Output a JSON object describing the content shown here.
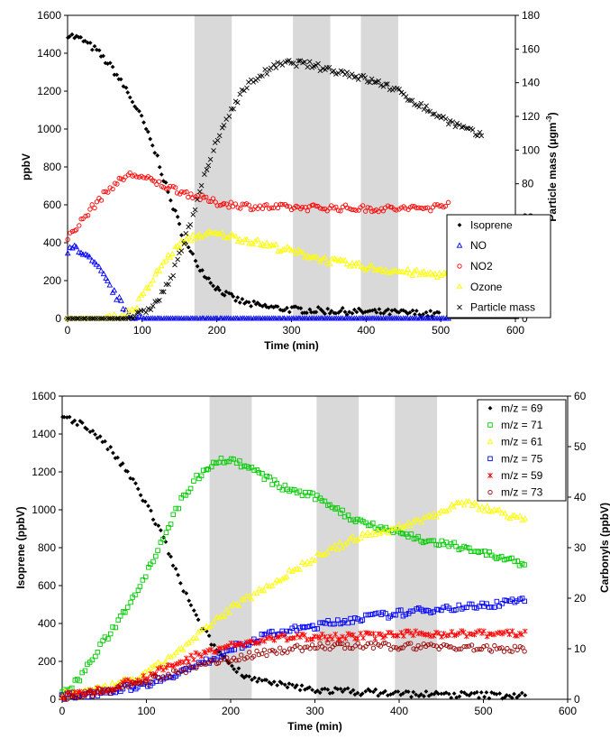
{
  "chart_data": [
    {
      "type": "scatter",
      "xlabel": "Time (min)",
      "ylabel": "ppbV",
      "y2label_main": "Particle mass (μgm",
      "y2label_sup": "-3",
      "y2label_end": ")",
      "xlim": [
        0,
        600
      ],
      "ylim": [
        0,
        1600
      ],
      "y2lim": [
        0,
        180
      ],
      "xticks": [
        "0",
        "100",
        "200",
        "300",
        "400",
        "500",
        "600"
      ],
      "yticks": [
        "0",
        "200",
        "400",
        "600",
        "800",
        "1000",
        "1200",
        "1400",
        "1600"
      ],
      "y2ticks": [
        "0",
        "20",
        "40",
        "60",
        "80",
        "100",
        "120",
        "140",
        "160",
        "180"
      ],
      "shaded_regions": [
        [
          170,
          220
        ],
        [
          302,
          352
        ],
        [
          393,
          443
        ]
      ],
      "legend_position": "right",
      "series": [
        {
          "name": "Isoprene",
          "color": "#000000",
          "marker": "diamond",
          "axis": "left",
          "points": [
            [
              0,
              1500
            ],
            [
              20,
              1470
            ],
            [
              40,
              1410
            ],
            [
              60,
              1320
            ],
            [
              80,
              1200
            ],
            [
              100,
              1050
            ],
            [
              120,
              850
            ],
            [
              140,
              600
            ],
            [
              160,
              380
            ],
            [
              180,
              250
            ],
            [
              200,
              160
            ],
            [
              220,
              110
            ],
            [
              240,
              80
            ],
            [
              260,
              65
            ],
            [
              280,
              55
            ],
            [
              300,
              48
            ],
            [
              350,
              40
            ],
            [
              400,
              35
            ],
            [
              450,
              30
            ],
            [
              500,
              22
            ]
          ]
        },
        {
          "name": "NO",
          "color": "#0000ff",
          "marker": "triangle",
          "axis": "left",
          "points": [
            [
              0,
              350
            ],
            [
              10,
              380
            ],
            [
              20,
              350
            ],
            [
              40,
              270
            ],
            [
              60,
              150
            ],
            [
              75,
              60
            ],
            [
              85,
              10
            ],
            [
              100,
              0
            ],
            [
              200,
              0
            ],
            [
              300,
              0
            ],
            [
              400,
              0
            ],
            [
              510,
              0
            ]
          ]
        },
        {
          "name": "NO2",
          "color": "#ff0000",
          "marker": "circle",
          "axis": "left",
          "points": [
            [
              0,
              430
            ],
            [
              20,
              520
            ],
            [
              40,
              620
            ],
            [
              60,
              700
            ],
            [
              80,
              755
            ],
            [
              90,
              760
            ],
            [
              110,
              730
            ],
            [
              130,
              700
            ],
            [
              160,
              660
            ],
            [
              200,
              610
            ],
            [
              250,
              590
            ],
            [
              300,
              585
            ],
            [
              350,
              585
            ],
            [
              400,
              580
            ],
            [
              450,
              580
            ],
            [
              490,
              585
            ],
            [
              500,
              600
            ],
            [
              510,
              610
            ]
          ]
        },
        {
          "name": "Ozone",
          "color": "#ffff00",
          "marker": "triangle",
          "axis": "left",
          "points": [
            [
              0,
              0
            ],
            [
              50,
              0
            ],
            [
              70,
              5
            ],
            [
              90,
              50
            ],
            [
              110,
              180
            ],
            [
              130,
              300
            ],
            [
              150,
              390
            ],
            [
              170,
              435
            ],
            [
              190,
              445
            ],
            [
              210,
              440
            ],
            [
              250,
              405
            ],
            [
              300,
              355
            ],
            [
              350,
              305
            ],
            [
              400,
              270
            ],
            [
              450,
              245
            ],
            [
              480,
              235
            ],
            [
              510,
              230
            ]
          ]
        },
        {
          "name": "Particle mass",
          "color": "#000000",
          "marker": "x",
          "axis": "right",
          "points": [
            [
              0,
              0
            ],
            [
              80,
              0
            ],
            [
              100,
              3
            ],
            [
              120,
              10
            ],
            [
              140,
              25
            ],
            [
              160,
              50
            ],
            [
              180,
              80
            ],
            [
              200,
              105
            ],
            [
              220,
              125
            ],
            [
              240,
              138
            ],
            [
              260,
              145
            ],
            [
              280,
              150
            ],
            [
              300,
              152
            ],
            [
              320,
              151
            ],
            [
              350,
              148
            ],
            [
              380,
              145
            ],
            [
              400,
              142
            ],
            [
              430,
              138
            ],
            [
              460,
              130
            ],
            [
              490,
              122
            ],
            [
              520,
              115
            ],
            [
              540,
              111
            ],
            [
              555,
              108
            ]
          ]
        }
      ]
    },
    {
      "type": "scatter",
      "xlabel": "Time (min)",
      "ylabel": "Isoprene (ppbV)",
      "y2label": "Carbonyls (ppbV)",
      "xlim": [
        0,
        600
      ],
      "ylim": [
        0,
        1600
      ],
      "y2lim": [
        0,
        60
      ],
      "xticks": [
        "0",
        "100",
        "200",
        "300",
        "400",
        "500",
        "600"
      ],
      "yticks": [
        "0",
        "200",
        "400",
        "600",
        "800",
        "1000",
        "1200",
        "1400",
        "1600"
      ],
      "y2ticks": [
        "0",
        "10",
        "20",
        "30",
        "40",
        "50",
        "60"
      ],
      "shaded_regions": [
        [
          175,
          225
        ],
        [
          302,
          352
        ],
        [
          395,
          445
        ]
      ],
      "legend_position": "top-right",
      "series": [
        {
          "name": "m/z = 69",
          "color": "#000000",
          "marker": "diamond",
          "axis": "left",
          "points": [
            [
              0,
              1500
            ],
            [
              20,
              1460
            ],
            [
              40,
              1400
            ],
            [
              60,
              1300
            ],
            [
              80,
              1180
            ],
            [
              100,
              1030
            ],
            [
              120,
              850
            ],
            [
              140,
              620
            ],
            [
              160,
              420
            ],
            [
              180,
              280
            ],
            [
              200,
              180
            ],
            [
              220,
              120
            ],
            [
              250,
              80
            ],
            [
              300,
              50
            ],
            [
              350,
              40
            ],
            [
              400,
              30
            ],
            [
              450,
              25
            ],
            [
              500,
              22
            ],
            [
              550,
              20
            ]
          ]
        },
        {
          "name": "m/z = 71",
          "color": "#00cc00",
          "marker": "square",
          "axis": "right",
          "points": [
            [
              0,
              1
            ],
            [
              20,
              4
            ],
            [
              40,
              9
            ],
            [
              60,
              14
            ],
            [
              80,
              19
            ],
            [
              100,
              25
            ],
            [
              120,
              32
            ],
            [
              140,
              39
            ],
            [
              160,
              44
            ],
            [
              180,
              47
            ],
            [
              200,
              47.5
            ],
            [
              220,
              46
            ],
            [
              240,
              44
            ],
            [
              260,
              42
            ],
            [
              280,
              41
            ],
            [
              300,
              40
            ],
            [
              320,
              38.5
            ],
            [
              340,
              36
            ],
            [
              360,
              35
            ],
            [
              380,
              34
            ],
            [
              400,
              33
            ],
            [
              420,
              32
            ],
            [
              440,
              31
            ],
            [
              460,
              30.5
            ],
            [
              480,
              30
            ],
            [
              500,
              29
            ],
            [
              520,
              28
            ],
            [
              540,
              27
            ],
            [
              550,
              26.5
            ]
          ]
        },
        {
          "name": "m/z = 61",
          "color": "#ffff00",
          "marker": "triangle",
          "axis": "right",
          "points": [
            [
              0,
              1
            ],
            [
              50,
              2
            ],
            [
              100,
              5
            ],
            [
              150,
              11
            ],
            [
              200,
              18
            ],
            [
              250,
              23
            ],
            [
              300,
              28
            ],
            [
              350,
              32
            ],
            [
              400,
              34
            ],
            [
              450,
              37
            ],
            [
              470,
              39
            ],
            [
              500,
              38
            ],
            [
              520,
              37
            ],
            [
              540,
              36
            ],
            [
              550,
              35
            ]
          ]
        },
        {
          "name": "m/z = 75",
          "color": "#0000ff",
          "marker": "square",
          "axis": "right",
          "points": [
            [
              0,
              0.5
            ],
            [
              50,
              1.5
            ],
            [
              100,
              3
            ],
            [
              150,
              6
            ],
            [
              180,
              8
            ],
            [
              200,
              10
            ],
            [
              250,
              13
            ],
            [
              300,
              14.5
            ],
            [
              350,
              16
            ],
            [
              400,
              17
            ],
            [
              450,
              18
            ],
            [
              500,
              18.5
            ],
            [
              520,
              19
            ],
            [
              550,
              20
            ]
          ]
        },
        {
          "name": "m/z = 59",
          "color": "#ff0000",
          "marker": "star",
          "axis": "right",
          "points": [
            [
              0,
              0.5
            ],
            [
              50,
              2
            ],
            [
              100,
              4.5
            ],
            [
              150,
              8
            ],
            [
              170,
              9.5
            ],
            [
              200,
              10.5
            ],
            [
              250,
              12
            ],
            [
              300,
              12.5
            ],
            [
              350,
              12.5
            ],
            [
              400,
              12.8
            ],
            [
              450,
              13
            ],
            [
              500,
              13
            ],
            [
              550,
              13
            ]
          ]
        },
        {
          "name": "m/z = 73",
          "color": "#990000",
          "marker": "circle",
          "axis": "right",
          "points": [
            [
              0,
              0.3
            ],
            [
              50,
              1.5
            ],
            [
              100,
              3.5
            ],
            [
              150,
              6
            ],
            [
              200,
              8
            ],
            [
              250,
              9.5
            ],
            [
              300,
              10.5
            ],
            [
              350,
              10.5
            ],
            [
              400,
              10.5
            ],
            [
              450,
              10.5
            ],
            [
              500,
              10
            ],
            [
              550,
              10
            ]
          ]
        }
      ]
    }
  ]
}
